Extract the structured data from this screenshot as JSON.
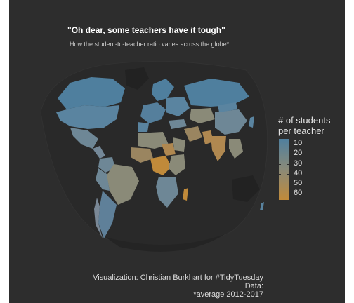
{
  "title": "\"Oh dear, some teachers have it tough\"",
  "subtitle": "How the student-to-teacher ratio varies across the globe*",
  "legend": {
    "title_line1": "# of students",
    "title_line2": "per teacher",
    "ticks": [
      "10",
      "20",
      "30",
      "40",
      "50",
      "60"
    ],
    "tick_values": [
      10,
      20,
      30,
      40,
      50,
      60
    ],
    "range": [
      5,
      66
    ],
    "color_low": "#4f7f9e",
    "color_mid": "#8a8a78",
    "color_high": "#c08a3a"
  },
  "caption": {
    "line1": "Visualization: Christian Burkhart for #TidyTuesday",
    "line2": "Data:",
    "line3": "*average 2012-2017"
  },
  "colors": {
    "background": "#2d2d2d",
    "ocean": "#262626",
    "no_data": "#1f1f1f",
    "blue": "#4f7f9e",
    "gray_blue": "#6e8796",
    "gray": "#8a8a78",
    "brown": "#9a8560",
    "orange": "#c08a3a"
  }
}
